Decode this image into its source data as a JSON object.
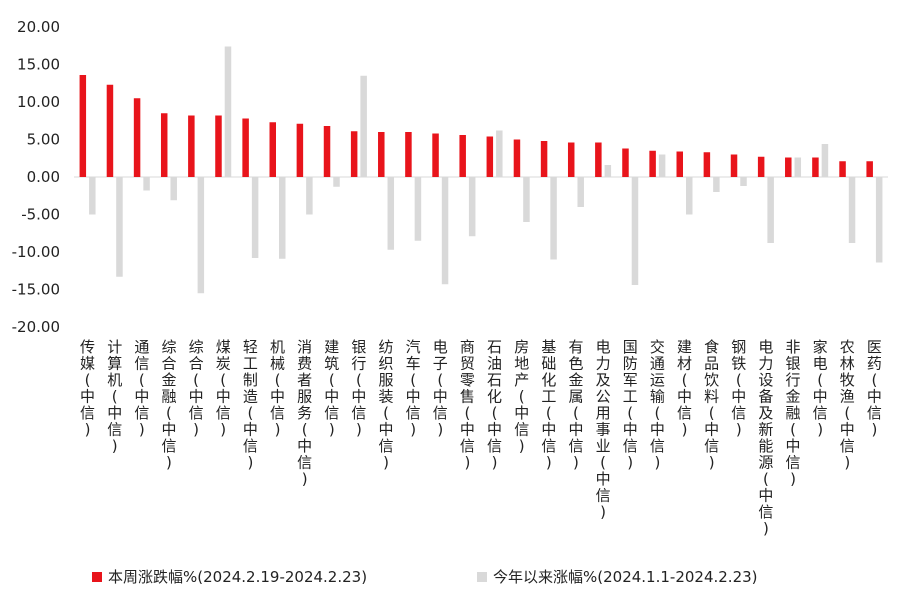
{
  "chart_data": {
    "type": "bar",
    "categories": [
      "传媒(中信)",
      "计算机(中信)",
      "通信(中信)",
      "综合金融(中信)",
      "综合(中信)",
      "煤炭(中信)",
      "轻工制造(中信)",
      "机械(中信)",
      "消费者服务(中信)",
      "建筑(中信)",
      "银行(中信)",
      "纺织服装(中信)",
      "汽车(中信)",
      "电子(中信)",
      "商贸零售(中信)",
      "石油石化(中信)",
      "房地产(中信)",
      "基础化工(中信)",
      "有色金属(中信)",
      "电力及公用事业(中信)",
      "国防军工(中信)",
      "交通运输(中信)",
      "建材(中信)",
      "食品饮料(中信)",
      "钢铁(中信)",
      "电力设备及新能源(中信)",
      "非银行金融(中信)",
      "家电(中信)",
      "农林牧渔(中信)",
      "医药(中信)"
    ],
    "series": [
      {
        "name": "本周涨跌幅%(2024.2.19-2024.2.23)",
        "color": "#e8141b",
        "values": [
          13.6,
          12.3,
          10.5,
          8.5,
          8.2,
          8.2,
          7.8,
          7.3,
          7.1,
          6.8,
          6.1,
          6.0,
          6.0,
          5.8,
          5.6,
          5.4,
          5.0,
          4.8,
          4.6,
          4.6,
          3.8,
          3.5,
          3.4,
          3.3,
          3.0,
          2.7,
          2.6,
          2.6,
          2.1,
          2.1
        ]
      },
      {
        "name": "今年以来涨幅%(2024.1.1-2024.2.23)",
        "color": "#d9d9d9",
        "values": [
          -5.0,
          -13.3,
          -1.8,
          -3.1,
          -15.5,
          17.4,
          -10.8,
          -10.9,
          -5.0,
          -1.3,
          13.5,
          -9.7,
          -8.5,
          -14.3,
          -7.9,
          6.2,
          -6.0,
          -11.0,
          -4.0,
          1.6,
          -14.4,
          3.0,
          -5.0,
          -2.0,
          -1.2,
          -8.8,
          2.6,
          4.4,
          -8.8,
          -11.4
        ]
      }
    ],
    "ylim": [
      -20,
      20
    ],
    "yticks": [
      "20.00",
      "15.00",
      "10.00",
      "5.00",
      "0.00",
      "-5.00",
      "-10.00",
      "-15.00",
      "-20.00"
    ],
    "title": "",
    "xlabel": "",
    "ylabel": "",
    "grid": false,
    "legend_position": "bottom"
  }
}
